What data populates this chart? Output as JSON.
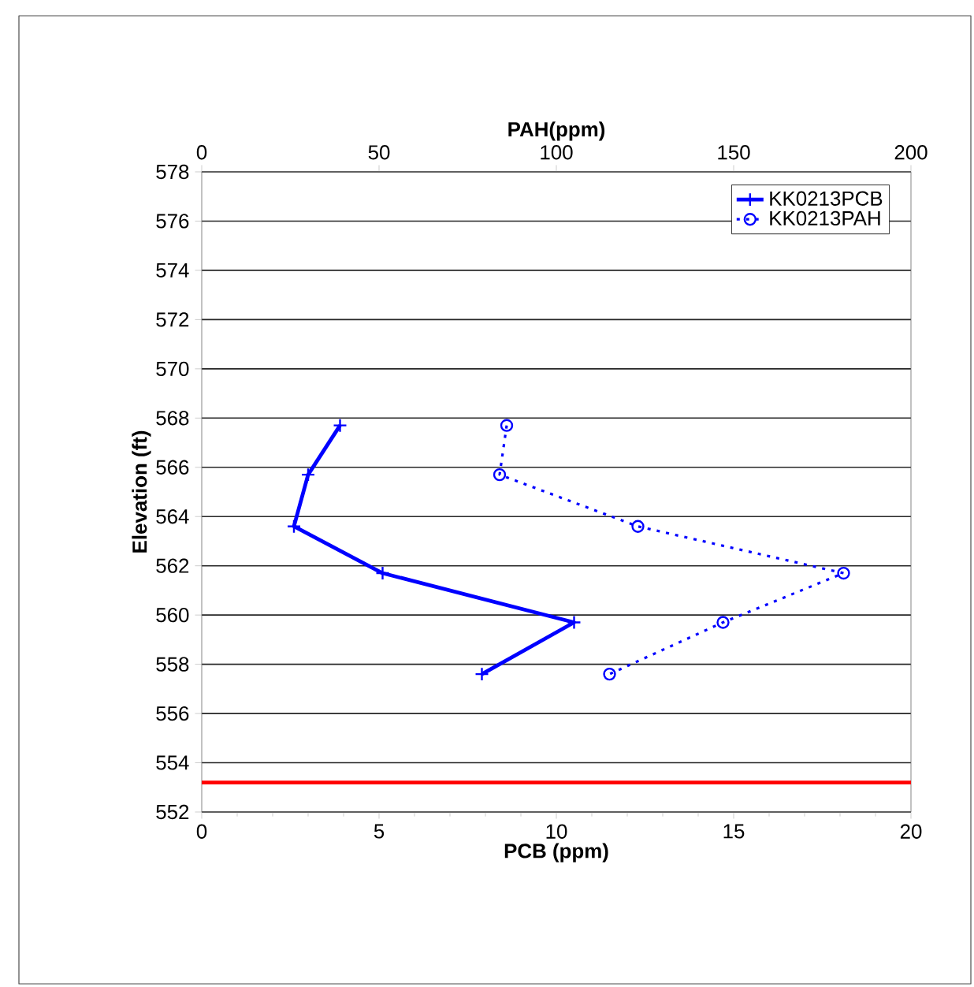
{
  "chart_data": {
    "type": "line",
    "xlabel": "**PCB (ppm)**",
    "x2label": "**PAH(ppm)**",
    "ylabel": "**Elevation (ft)**",
    "xlim": [
      0,
      20
    ],
    "xticks": [
      0,
      5,
      10,
      15,
      20
    ],
    "x2lim": [
      0,
      200
    ],
    "x2ticks": [
      0,
      50,
      100,
      150,
      200
    ],
    "ylim": [
      552,
      578
    ],
    "yticks": [
      552,
      554,
      556,
      558,
      560,
      562,
      564,
      566,
      568,
      570,
      572,
      574,
      576,
      578
    ],
    "grid": "y",
    "legend": "top right",
    "series": [
      {
        "name": "KK0213PCB",
        "color": "#0000ff",
        "marker": "cross",
        "line_style": "solid",
        "x": [
          3.9,
          3.0,
          2.6,
          5.1,
          10.5,
          7.9
        ],
        "values": [
          567.7,
          565.7,
          563.6,
          561.7,
          559.7,
          557.6
        ]
      },
      {
        "name": "KK0213PAH",
        "color": "#0000ff",
        "marker": "circle",
        "line_style": "dotted",
        "axis": "x2",
        "x": [
          86,
          84,
          123,
          181,
          147,
          115
        ],
        "values": [
          567.7,
          565.7,
          563.6,
          561.7,
          559.7,
          557.6
        ]
      }
    ],
    "ref_lines": [
      {
        "axis": "y",
        "value": 553.2,
        "color": "#ff0000"
      }
    ]
  }
}
